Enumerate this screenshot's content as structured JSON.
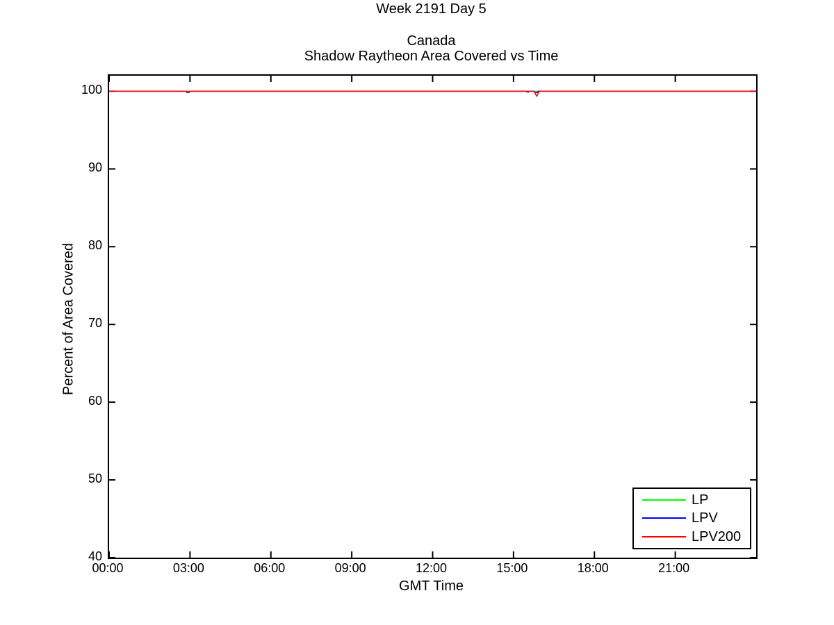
{
  "figure": {
    "suptitle": "Week 2191 Day 5",
    "title_line1": "Canada",
    "title_line2": "Shadow Raytheon Area Covered vs Time"
  },
  "chart_data": {
    "type": "line",
    "title": "Canada",
    "subtitle": "Shadow Raytheon Area Covered vs Time",
    "suptitle": "Week 2191 Day 5",
    "xlabel": "GMT Time",
    "ylabel": "Percent of Area Covered",
    "xlim_hours": [
      0,
      24
    ],
    "ylim": [
      40,
      102
    ],
    "grid": false,
    "legend_position": "lower-right",
    "axis_color": "#000000",
    "background_color": "#ffffff",
    "x_ticks": [
      {
        "hour": 0,
        "label": "00:00"
      },
      {
        "hour": 3,
        "label": "03:00"
      },
      {
        "hour": 6,
        "label": "06:00"
      },
      {
        "hour": 9,
        "label": "09:00"
      },
      {
        "hour": 12,
        "label": "12:00"
      },
      {
        "hour": 15,
        "label": "15:00"
      },
      {
        "hour": 18,
        "label": "18:00"
      },
      {
        "hour": 21,
        "label": "21:00"
      }
    ],
    "y_ticks": [
      {
        "value": 40,
        "label": "40"
      },
      {
        "value": 50,
        "label": "50"
      },
      {
        "value": 60,
        "label": "60"
      },
      {
        "value": 70,
        "label": "70"
      },
      {
        "value": 80,
        "label": "80"
      },
      {
        "value": 90,
        "label": "90"
      },
      {
        "value": 100,
        "label": "100"
      }
    ],
    "series": [
      {
        "name": "LP",
        "color": "#00ff00",
        "points_hour_percent": [
          [
            0,
            100
          ],
          [
            24,
            100
          ]
        ]
      },
      {
        "name": "LPV",
        "color": "#0000ff",
        "points_hour_percent": [
          [
            0,
            100
          ],
          [
            2.86,
            100
          ],
          [
            2.88,
            99.85
          ],
          [
            2.97,
            99.85
          ],
          [
            2.99,
            100
          ],
          [
            15.49,
            100
          ],
          [
            15.5,
            99.9
          ],
          [
            15.56,
            99.9
          ],
          [
            15.57,
            100
          ],
          [
            15.77,
            100
          ],
          [
            15.8,
            99.82
          ],
          [
            15.88,
            99.82
          ],
          [
            15.91,
            100
          ],
          [
            24,
            100
          ]
        ]
      },
      {
        "name": "LPV200",
        "color": "#ff0000",
        "points_hour_percent": [
          [
            0,
            100
          ],
          [
            2.9,
            100
          ],
          [
            2.92,
            99.9
          ],
          [
            2.96,
            99.9
          ],
          [
            2.98,
            100
          ],
          [
            15.76,
            100
          ],
          [
            15.86,
            99.35
          ],
          [
            15.96,
            100
          ],
          [
            24,
            100
          ]
        ]
      }
    ]
  }
}
